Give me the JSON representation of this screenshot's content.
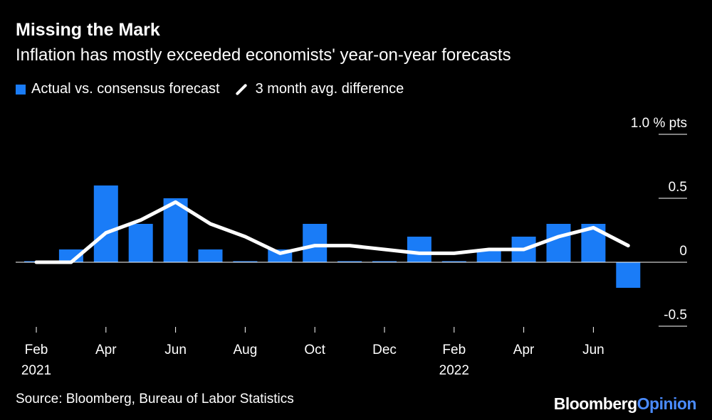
{
  "header": {
    "title": "Missing the Mark",
    "subtitle": "Inflation has mostly exceeded economists' year-on-year forecasts"
  },
  "legend": {
    "bar_label": "Actual vs. consensus forecast",
    "line_label": "3 month avg. difference"
  },
  "footer": {
    "source": "Source: Bloomberg, Bureau of Labor Statistics",
    "brand_part1": "Bloomberg",
    "brand_part2": "Opinion"
  },
  "colors": {
    "bar": "#1a7cf7",
    "line": "#ffffff",
    "background": "#000000"
  },
  "chart_data": {
    "type": "bar",
    "title": "Missing the Mark",
    "ylabel": "% pts",
    "ylim": [
      -0.5,
      1.0
    ],
    "yticks": [
      {
        "value": 1.0,
        "label": "1.0 % pts"
      },
      {
        "value": 0.5,
        "label": "0.5"
      },
      {
        "value": 0,
        "label": "0"
      },
      {
        "value": -0.5,
        "label": "-0.5"
      }
    ],
    "categories": [
      "Feb 2021",
      "Mar 2021",
      "Apr 2021",
      "May 2021",
      "Jun 2021",
      "Jul 2021",
      "Aug 2021",
      "Sep 2021",
      "Oct 2021",
      "Nov 2021",
      "Dec 2021",
      "Jan 2022",
      "Feb 2022",
      "Mar 2022",
      "Apr 2022",
      "May 2022",
      "Jun 2022",
      "Jul 2022"
    ],
    "xtick_labels": [
      {
        "index": 0,
        "month": "Feb",
        "year": "2021"
      },
      {
        "index": 2,
        "month": "Apr",
        "year": ""
      },
      {
        "index": 4,
        "month": "Jun",
        "year": ""
      },
      {
        "index": 6,
        "month": "Aug",
        "year": ""
      },
      {
        "index": 8,
        "month": "Oct",
        "year": ""
      },
      {
        "index": 10,
        "month": "Dec",
        "year": ""
      },
      {
        "index": 12,
        "month": "Feb",
        "year": "2022"
      },
      {
        "index": 14,
        "month": "Apr",
        "year": ""
      },
      {
        "index": 16,
        "month": "Jun",
        "year": ""
      }
    ],
    "series": [
      {
        "name": "Actual vs. consensus forecast",
        "type": "bar",
        "values": [
          0.0,
          0.1,
          0.6,
          0.3,
          0.5,
          0.1,
          0.0,
          0.1,
          0.3,
          0.0,
          0.0,
          0.2,
          0.0,
          0.1,
          0.2,
          0.3,
          0.3,
          -0.2
        ]
      },
      {
        "name": "3 month avg. difference",
        "type": "line",
        "values": [
          0.0,
          0.0,
          0.23,
          0.33,
          0.47,
          0.3,
          0.2,
          0.07,
          0.13,
          0.13,
          0.1,
          0.07,
          0.07,
          0.1,
          0.1,
          0.2,
          0.27,
          0.13
        ]
      }
    ]
  }
}
